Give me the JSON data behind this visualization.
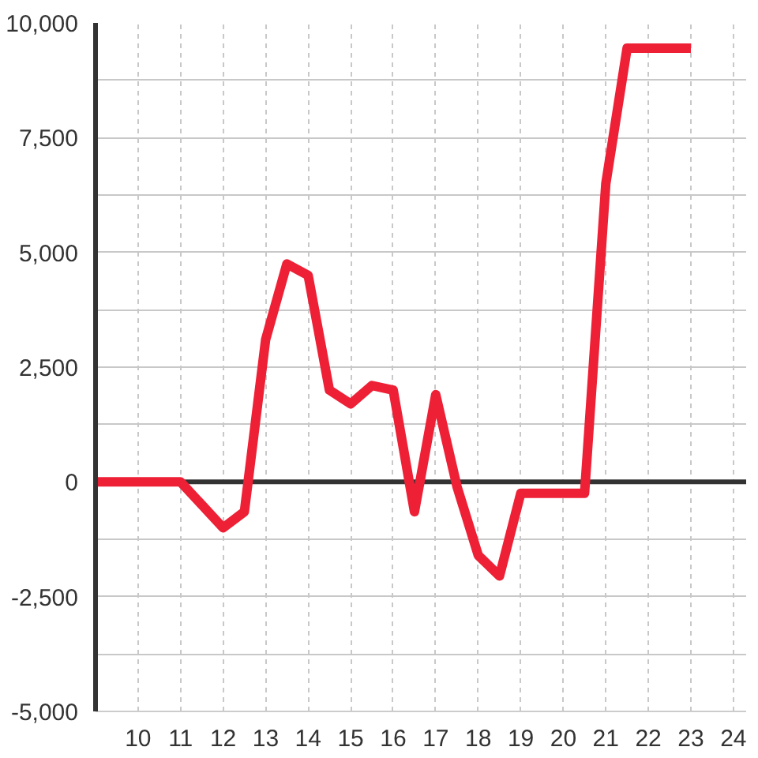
{
  "chart_data": {
    "type": "line",
    "x": [
      9,
      9.5,
      10,
      10.5,
      11,
      11.5,
      12,
      12.5,
      13,
      13.5,
      14,
      14.5,
      15,
      15.5,
      16,
      16.5,
      17,
      17.5,
      18,
      18.5,
      19,
      19.5,
      20,
      20.5,
      21,
      21.5,
      22,
      22.5,
      23
    ],
    "series": [
      {
        "color": "#ee2036",
        "values": [
          0,
          0,
          0,
          0,
          0,
          -500,
          -1000,
          -650,
          3100,
          4750,
          4500,
          2000,
          1700,
          2100,
          2000,
          -650,
          1900,
          -100,
          -1600,
          -2050,
          -250,
          -250,
          -250,
          -250,
          6500,
          9450,
          9450,
          9450,
          9450
        ]
      }
    ],
    "xlim": [
      9,
      24.3
    ],
    "xticks": [
      10,
      11,
      12,
      13,
      14,
      15,
      16,
      17,
      18,
      19,
      20,
      21,
      22,
      23,
      24
    ],
    "ylim": [
      -5000,
      10000
    ],
    "yticks": [
      {
        "value": -5000,
        "label": "-5,000"
      },
      {
        "value": -3750,
        "label": null
      },
      {
        "value": -2500,
        "label": "-2,500"
      },
      {
        "value": -1250,
        "label": null
      },
      0,
      {
        "value": 1250,
        "label": null
      },
      {
        "value": 2500,
        "label": "2,500"
      },
      {
        "value": 3750,
        "label": null
      },
      {
        "value": 5000,
        "label": "5,000"
      },
      {
        "value": 6250,
        "label": null
      },
      {
        "value": 7500,
        "label": "7,500"
      },
      {
        "value": 8750,
        "label": null
      },
      {
        "value": 10000,
        "label": "10,000"
      }
    ],
    "grid": true,
    "ref_lines": [
      {
        "axis": "y",
        "value": 0,
        "color": "#333333"
      }
    ]
  }
}
